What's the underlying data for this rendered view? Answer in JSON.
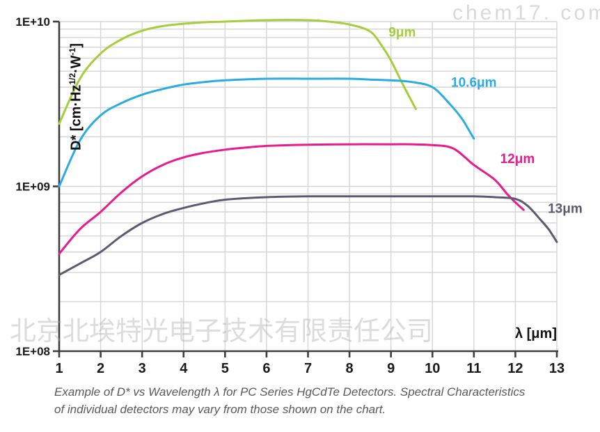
{
  "watermarks": {
    "chem17": "chem17. com",
    "chinese": "北京北埃特光电子技术有限责任公司"
  },
  "caption": {
    "line1": "Example of D* vs Wavelength λ for PC Series HgCdTe Detectors. Spectral Characteristics",
    "line2": "of individual detectors may vary from those shown on the chart."
  },
  "chart_data": {
    "type": "line",
    "title": "",
    "xlabel": "λ [μm]",
    "ylabel": "D* [cm·Hz1/2·W-1]",
    "ylabel_parts": {
      "pre": "D* [cm·Hz",
      "sup1": "1/2",
      "mid": "·W",
      "sup2": "-1",
      "post": "]"
    },
    "xlim": [
      1,
      13
    ],
    "ylim": [
      100000000.0,
      10000000000.0
    ],
    "ylog": [
      8,
      10
    ],
    "x_ticks": [
      1,
      2,
      3,
      4,
      5,
      6,
      7,
      8,
      9,
      10,
      11,
      12,
      13
    ],
    "y_ticks": [
      {
        "label": "1E+08",
        "value": 100000000.0
      },
      {
        "label": "1E+09",
        "value": 1000000000.0
      },
      {
        "label": "1E+10",
        "value": 10000000000.0
      }
    ],
    "grid": "log-minor horizontal + integer vertical, light gray",
    "legend_position": "labels beside curves",
    "colors": {
      "grid": "#d5d5d5",
      "axis": "#3d3d3d",
      "tick_text": "#1b1b1b"
    },
    "series": [
      {
        "id": "9um",
        "name": "9μm",
        "color": "#a5cd3c",
        "label_at": [
          9.27,
          8700000000.0
        ],
        "points": [
          [
            1,
            2400000000.0
          ],
          [
            1.5,
            4500000000.0
          ],
          [
            2,
            6400000000.0
          ],
          [
            2.5,
            7800000000.0
          ],
          [
            3,
            8800000000.0
          ],
          [
            3.5,
            9400000000.0
          ],
          [
            4,
            9700000000.0
          ],
          [
            4.5,
            9900000000.0
          ],
          [
            5,
            10000000000.0
          ],
          [
            6,
            10200000000.0
          ],
          [
            7,
            10200000000.0
          ],
          [
            7.5,
            10000000000.0
          ],
          [
            8,
            9600000000.0
          ],
          [
            8.5,
            8700000000.0
          ],
          [
            8.8,
            7000000000.0
          ],
          [
            9,
            5800000000.0
          ],
          [
            9.3,
            4100000000.0
          ],
          [
            9.6,
            2950000000.0
          ]
        ]
      },
      {
        "id": "10-6um",
        "name": "10.6μm",
        "color": "#2aace2",
        "label_at": [
          11.0,
          4300000000.0
        ],
        "points": [
          [
            1,
            1000000000.0
          ],
          [
            1.5,
            1900000000.0
          ],
          [
            2,
            2700000000.0
          ],
          [
            2.5,
            3200000000.0
          ],
          [
            3,
            3600000000.0
          ],
          [
            3.5,
            3900000000.0
          ],
          [
            4,
            4150000000.0
          ],
          [
            4.5,
            4300000000.0
          ],
          [
            5,
            4400000000.0
          ],
          [
            6,
            4500000000.0
          ],
          [
            7,
            4500000000.0
          ],
          [
            8,
            4500000000.0
          ],
          [
            8.5,
            4450000000.0
          ],
          [
            9,
            4400000000.0
          ],
          [
            9.5,
            4300000000.0
          ],
          [
            10,
            4000000000.0
          ],
          [
            10.4,
            3200000000.0
          ],
          [
            10.7,
            2600000000.0
          ],
          [
            10.9,
            2150000000.0
          ],
          [
            11,
            1950000000.0
          ]
        ]
      },
      {
        "id": "12um",
        "name": "12μm",
        "color": "#e71b8c",
        "label_at": [
          12.05,
          1480000000.0
        ],
        "points": [
          [
            1,
            390000000.0
          ],
          [
            1.5,
            550000000.0
          ],
          [
            2,
            700000000.0
          ],
          [
            2.5,
            920000000.0
          ],
          [
            3,
            1150000000.0
          ],
          [
            3.5,
            1350000000.0
          ],
          [
            4,
            1500000000.0
          ],
          [
            4.5,
            1600000000.0
          ],
          [
            5,
            1670000000.0
          ],
          [
            5.5,
            1720000000.0
          ],
          [
            6,
            1760000000.0
          ],
          [
            7,
            1790000000.0
          ],
          [
            8,
            1800000000.0
          ],
          [
            9,
            1800000000.0
          ],
          [
            9.5,
            1800000000.0
          ],
          [
            10,
            1780000000.0
          ],
          [
            10.5,
            1700000000.0
          ],
          [
            11,
            1350000000.0
          ],
          [
            11.5,
            1100000000.0
          ],
          [
            11.8,
            900000000.0
          ],
          [
            12,
            800000000.0
          ],
          [
            12.2,
            720000000.0
          ]
        ]
      },
      {
        "id": "13um",
        "name": "13μm",
        "color": "#5b5a71",
        "label_at": [
          13.2,
          740000000.0
        ],
        "points": [
          [
            1,
            290000000.0
          ],
          [
            1.5,
            340000000.0
          ],
          [
            2,
            400000000.0
          ],
          [
            2.5,
            500000000.0
          ],
          [
            3,
            600000000.0
          ],
          [
            3.5,
            680000000.0
          ],
          [
            4,
            740000000.0
          ],
          [
            4.5,
            790000000.0
          ],
          [
            5,
            830000000.0
          ],
          [
            6,
            860000000.0
          ],
          [
            7,
            870000000.0
          ],
          [
            8,
            870000000.0
          ],
          [
            9,
            870000000.0
          ],
          [
            10,
            870000000.0
          ],
          [
            11,
            870000000.0
          ],
          [
            11.5,
            860000000.0
          ],
          [
            12,
            840000000.0
          ],
          [
            12.3,
            760000000.0
          ],
          [
            12.6,
            630000000.0
          ],
          [
            12.8,
            550000000.0
          ],
          [
            13,
            460000000.0
          ]
        ]
      }
    ]
  }
}
